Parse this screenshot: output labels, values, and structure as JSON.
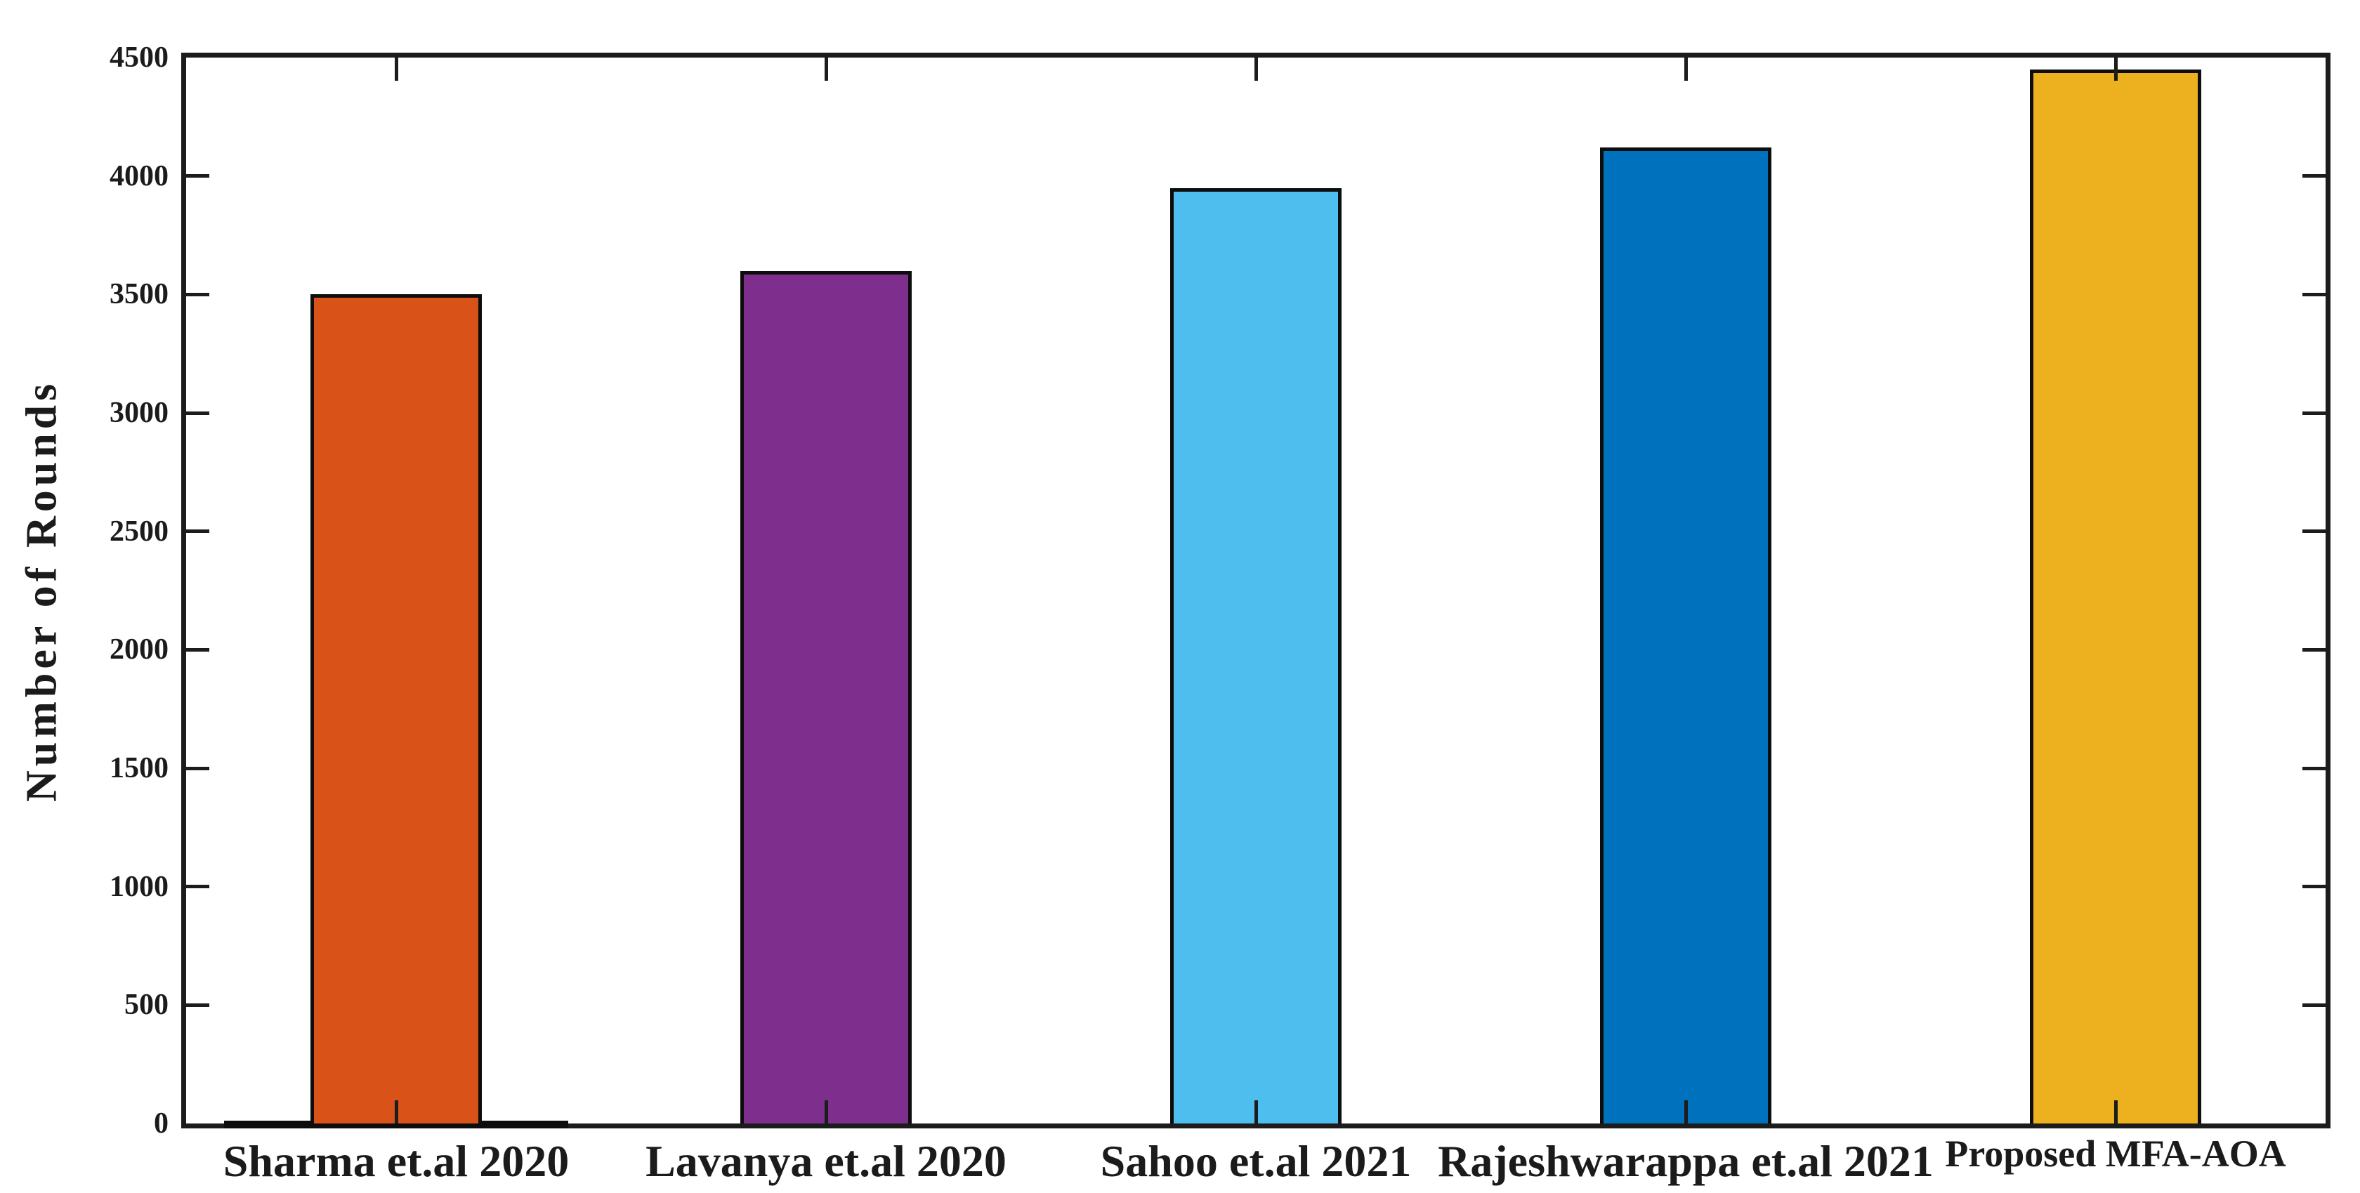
{
  "page": {
    "background_color": "#ffffff",
    "ink_color": "#1c1c1c"
  },
  "chart_data": {
    "type": "bar",
    "title": "",
    "categories": [
      "Sharma et.al 2020",
      "Lavanya et.al 2020",
      "Sahoo et.al 2021",
      "Rajeshwarappa et.al 2021",
      "Proposed MFA-AOA"
    ],
    "values": [
      3500,
      3600,
      3950,
      4120,
      4450
    ],
    "bar_colors": [
      "#D95319",
      "#7E2F8E",
      "#4DBEEE",
      "#0072BD",
      "#EDB120"
    ],
    "bar_edge_color": "#0d0d0d",
    "xlabel": "",
    "ylabel": "Number of Rounds",
    "ylim": [
      0,
      4500
    ],
    "yticks": [
      0,
      500,
      1000,
      1500,
      2000,
      2500,
      3000,
      3500,
      4000,
      4500
    ],
    "grid": false,
    "legend": "none",
    "box": true,
    "tick_direction": "in",
    "zero_strip": {
      "category_index": 0,
      "width_fraction": 0.8
    }
  }
}
